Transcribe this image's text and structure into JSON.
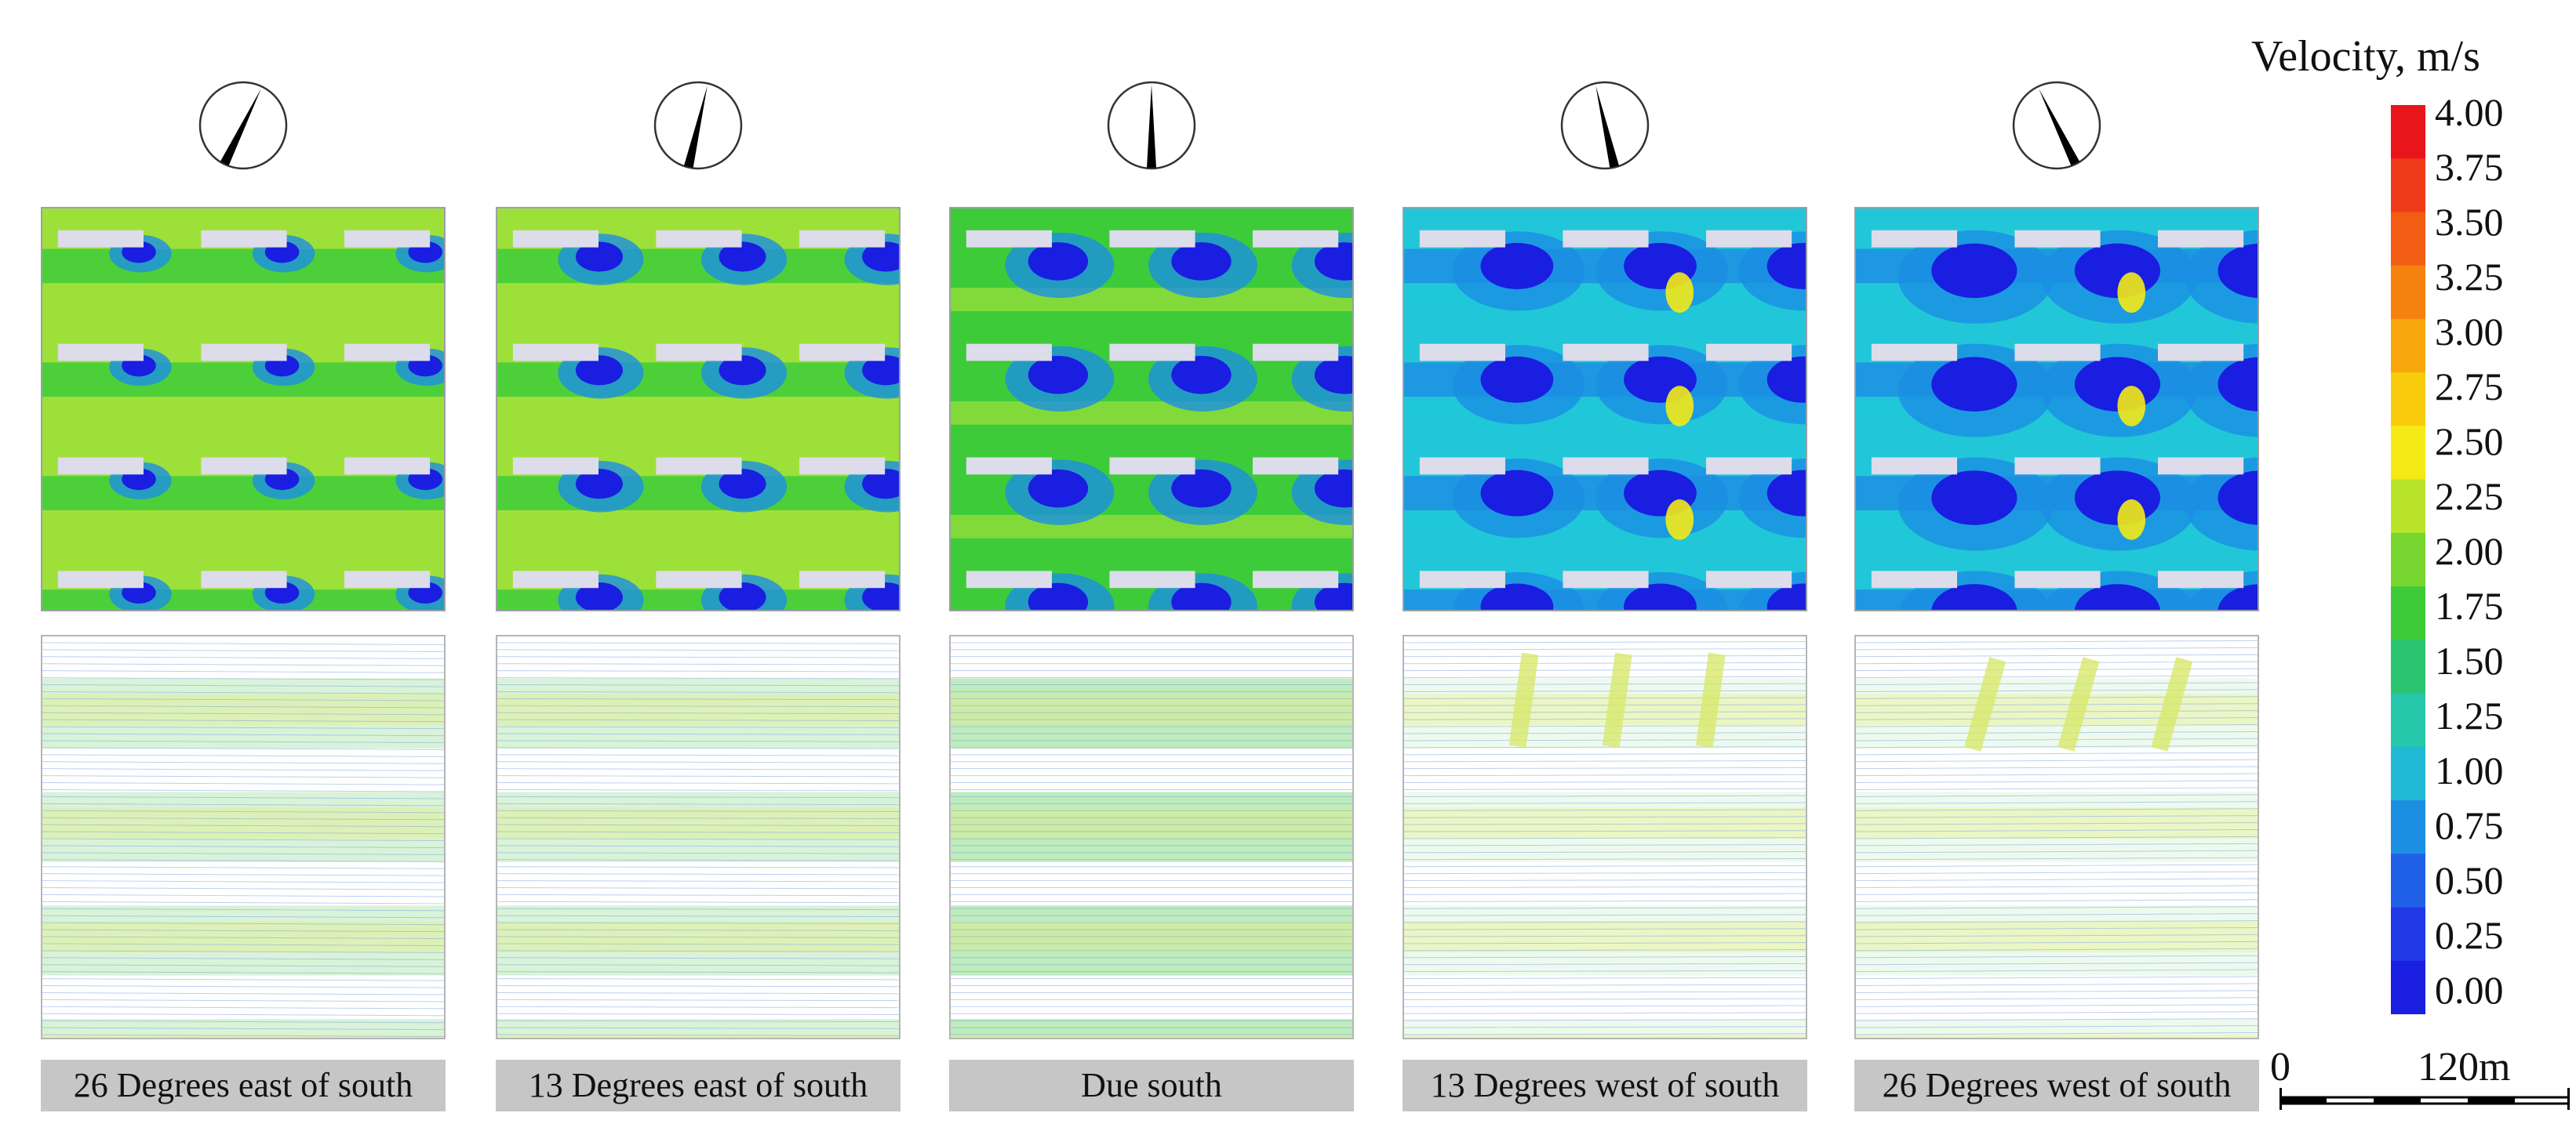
{
  "panels": [
    {
      "caption": "26 Degrees east of south",
      "direction": "26E",
      "angle": 26
    },
    {
      "caption": "13 Degrees east of south",
      "direction": "13E",
      "angle": 13
    },
    {
      "caption": "Due south",
      "direction": "S",
      "angle": 0
    },
    {
      "caption": "13 Degrees west of south",
      "direction": "13W",
      "angle": -13
    },
    {
      "caption": "26 Degrees west of south",
      "direction": "26W",
      "angle": -26
    }
  ],
  "legend": {
    "title": "Velocity, m/s",
    "ticks": [
      "4.00",
      "3.75",
      "3.50",
      "3.25",
      "3.00",
      "2.75",
      "2.50",
      "2.25",
      "2.00",
      "1.75",
      "1.50",
      "1.25",
      "1.00",
      "0.75",
      "0.50",
      "0.25",
      "0.00"
    ],
    "colors": [
      "#e8161a",
      "#ef3a17",
      "#f25c13",
      "#f5820f",
      "#f7a60c",
      "#f8cb0d",
      "#f5ea16",
      "#b9e32a",
      "#77d62f",
      "#3ecb3a",
      "#2bc470",
      "#26c7ab",
      "#21b9d5",
      "#1c8fe3",
      "#2161e8",
      "#1f39e6",
      "#1a1ee0"
    ]
  },
  "scale": {
    "start": "0",
    "end": "120m"
  },
  "colors": {
    "low": "#1a1ee0",
    "mid_blue": "#1c8fe3",
    "cyan": "#21c7d8",
    "green": "#3ecb3a",
    "lime": "#9ee03a",
    "yellow": "#f5ea16",
    "building": "#dcdcea"
  }
}
